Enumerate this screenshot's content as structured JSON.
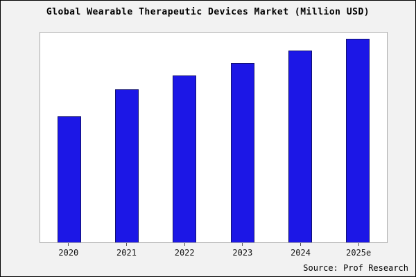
{
  "title": "Global Wearable Therapeutic Devices Market (Million USD)",
  "source": "Source: Prof Research",
  "colors": {
    "bar_fill": "#1c17e6",
    "bar_border": "#10106e",
    "background": "#f2f2f2",
    "plot_background": "#ffffff",
    "plot_border": "#aaaaaa"
  },
  "chart_data": {
    "type": "bar",
    "title": "Global Wearable Therapeutic Devices Market (Million USD)",
    "categories": [
      "2020",
      "2021",
      "2022",
      "2023",
      "2024",
      "2025e"
    ],
    "values": [
      62,
      75,
      82,
      88,
      94,
      100
    ],
    "xlabel": "",
    "ylabel": "",
    "ylim": [
      0,
      103
    ],
    "grid": false,
    "legend": false,
    "y_axis_labels_visible": false,
    "data_labels_visible": false
  }
}
